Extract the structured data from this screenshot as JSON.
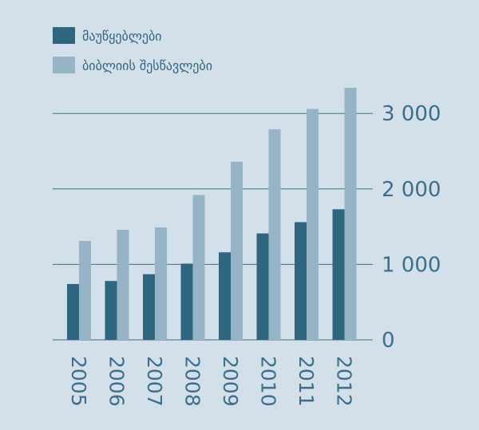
{
  "chart_data": {
    "type": "bar",
    "categories": [
      "2005",
      "2006",
      "2007",
      "2008",
      "2009",
      "2010",
      "2011",
      "2012"
    ],
    "series": [
      {
        "name": "მაუწყებლები",
        "color": "#2e6680",
        "values": [
          740,
          780,
          870,
          1010,
          1160,
          1410,
          1560,
          1730
        ]
      },
      {
        "name": "ბიბლიის შესწავლები",
        "color": "#96b4c6",
        "values": [
          1310,
          1460,
          1490,
          1920,
          2360,
          2790,
          3060,
          3340
        ]
      }
    ],
    "y_ticks": [
      {
        "value": 0,
        "label": "0"
      },
      {
        "value": 1000,
        "label": "1 000"
      },
      {
        "value": 2000,
        "label": "2 000"
      },
      {
        "value": 3000,
        "label": "3 000"
      }
    ],
    "ylim": [
      0,
      3400
    ],
    "grid": true,
    "legend_position": "top-left",
    "axis_position": "right",
    "tick_label_color": "#3b6f8c",
    "gridline_color": "#3e6e84"
  }
}
